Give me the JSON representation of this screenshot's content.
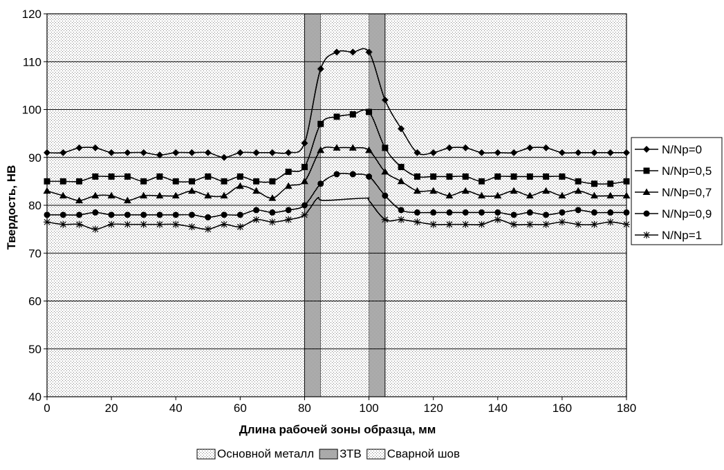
{
  "chart_data": {
    "type": "line",
    "title": "",
    "xlabel": "Длина рабочей зоны образца, мм",
    "ylabel": "Твердость, НВ",
    "xlim": [
      0,
      180
    ],
    "ylim": [
      40,
      120
    ],
    "xticks": [
      0,
      20,
      40,
      60,
      80,
      100,
      120,
      140,
      160,
      180
    ],
    "yticks": [
      40,
      50,
      60,
      70,
      80,
      90,
      100,
      110,
      120
    ],
    "grid": "horizontal",
    "legend_position": "right",
    "zones": [
      {
        "name": "Основной металл",
        "ranges": [
          [
            0,
            80
          ],
          [
            105,
            180
          ]
        ],
        "fill": "#e8e8e8"
      },
      {
        "name": "ЗТВ",
        "ranges": [
          [
            80,
            85
          ],
          [
            100,
            105
          ]
        ],
        "fill": "#b8b8b8"
      },
      {
        "name": "Сварной шов",
        "ranges": [
          [
            85,
            100
          ]
        ],
        "fill": "#dcdcdc"
      }
    ],
    "series": [
      {
        "name": "N/Np=0",
        "marker": "diamond",
        "x": [
          0,
          5,
          10,
          15,
          20,
          25,
          30,
          35,
          40,
          45,
          50,
          55,
          60,
          65,
          70,
          75,
          80,
          85,
          90,
          95,
          100,
          105,
          110,
          115,
          120,
          125,
          130,
          135,
          140,
          145,
          150,
          155,
          160,
          165,
          170,
          175,
          180
        ],
        "y": [
          91,
          91,
          92,
          92,
          91,
          91,
          91,
          90.5,
          91,
          91,
          91,
          90,
          91,
          91,
          91,
          91,
          93,
          108.5,
          112,
          112,
          112,
          102,
          96,
          91,
          91,
          92,
          92,
          91,
          91,
          91,
          92,
          92,
          91,
          91,
          91,
          91,
          91
        ]
      },
      {
        "name": "N/Np=0,5",
        "marker": "square",
        "x": [
          0,
          5,
          10,
          15,
          20,
          25,
          30,
          35,
          40,
          45,
          50,
          55,
          60,
          65,
          70,
          75,
          80,
          85,
          90,
          95,
          100,
          105,
          110,
          115,
          120,
          125,
          130,
          135,
          140,
          145,
          150,
          155,
          160,
          165,
          170,
          175,
          180
        ],
        "y": [
          85,
          85,
          85,
          86,
          86,
          86,
          85,
          86,
          85,
          85,
          86,
          85,
          86,
          85,
          85,
          87,
          88,
          97,
          98.5,
          99,
          99.5,
          92,
          88,
          86,
          86,
          86,
          86,
          85,
          86,
          86,
          86,
          86,
          86,
          85,
          84.5,
          84.5,
          85
        ]
      },
      {
        "name": "N/Np=0,7",
        "marker": "triangle",
        "x": [
          0,
          5,
          10,
          15,
          20,
          25,
          30,
          35,
          40,
          45,
          50,
          55,
          60,
          65,
          70,
          75,
          80,
          85,
          90,
          95,
          100,
          105,
          110,
          115,
          120,
          125,
          130,
          135,
          140,
          145,
          150,
          155,
          160,
          165,
          170,
          175,
          180
        ],
        "y": [
          83,
          82,
          81,
          82,
          82,
          81,
          82,
          82,
          82,
          83,
          82,
          82,
          84,
          83,
          81.5,
          84,
          85,
          91.5,
          92,
          92,
          91.5,
          87,
          85,
          83,
          83,
          82,
          83,
          82,
          82,
          83,
          82,
          83,
          82,
          83,
          82,
          82,
          82
        ]
      },
      {
        "name": "N/Np=0,9",
        "marker": "circle",
        "x": [
          0,
          5,
          10,
          15,
          20,
          25,
          30,
          35,
          40,
          45,
          50,
          55,
          60,
          65,
          70,
          75,
          80,
          85,
          90,
          95,
          100,
          105,
          110,
          115,
          120,
          125,
          130,
          135,
          140,
          145,
          150,
          155,
          160,
          165,
          170,
          175,
          180
        ],
        "y": [
          78,
          78,
          78,
          78.5,
          78,
          78,
          78,
          78,
          78,
          78,
          77.5,
          78,
          78,
          79,
          78.5,
          79,
          80,
          84.5,
          86.5,
          86.5,
          86,
          82,
          79,
          78.5,
          78.5,
          78.5,
          78.5,
          78.5,
          78.5,
          78,
          78.5,
          78,
          78.5,
          79,
          78.5,
          78.5,
          78.5
        ]
      },
      {
        "name": "N/Np=1",
        "marker": "star",
        "x": [
          0,
          5,
          10,
          15,
          20,
          25,
          30,
          35,
          40,
          45,
          50,
          55,
          60,
          65,
          70,
          75,
          80,
          84,
          86,
          99,
          100,
          105,
          110,
          115,
          120,
          125,
          130,
          135,
          140,
          145,
          150,
          155,
          160,
          165,
          170,
          175,
          180
        ],
        "y": [
          76.5,
          76,
          76,
          75,
          76,
          76,
          76,
          76,
          76,
          75.5,
          75,
          76,
          75.5,
          77,
          76.5,
          77,
          78,
          81.5,
          81,
          81.5,
          81,
          77,
          77,
          76.5,
          76,
          76,
          76,
          76,
          77,
          76,
          76,
          76,
          76.5,
          76,
          76,
          76.5,
          76
        ]
      }
    ]
  }
}
